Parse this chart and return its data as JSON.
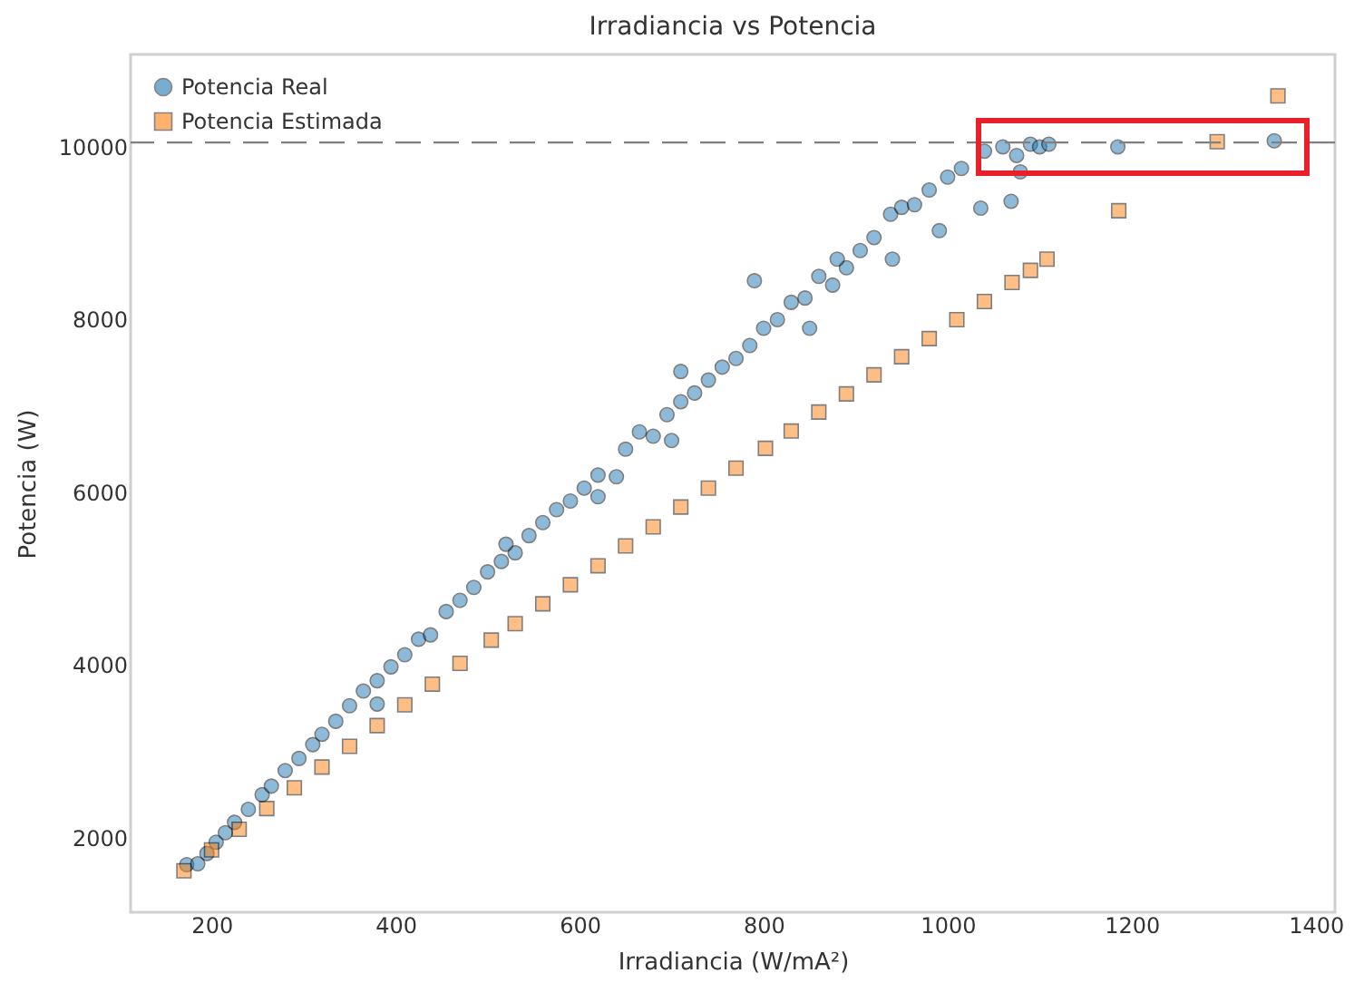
{
  "chart_data": {
    "type": "scatter",
    "title": "Irradiancia vs Potencia",
    "xlabel": "Irradiancia (W/mA²)",
    "ylabel": "Potencia (W)",
    "xlim": [
      112,
      1421
    ],
    "ylim": [
      1139,
      11070
    ],
    "xticks": [
      200,
      400,
      600,
      800,
      1000,
      1200,
      1400
    ],
    "yticks": [
      2000,
      4000,
      6000,
      8000,
      10000
    ],
    "grid": false,
    "legend": "top left",
    "ref_lines": [
      {
        "axis": "y",
        "value": 10050,
        "color": "#808080",
        "line_style": "dashed"
      }
    ],
    "series": [
      {
        "name": "Potencia Real",
        "color": "#1f77b4",
        "marker": "circle",
        "x": [
          173,
          185,
          195,
          205,
          215,
          225,
          240,
          255,
          265,
          280,
          295,
          310,
          320,
          335,
          350,
          365,
          380,
          395,
          410,
          425,
          438,
          455,
          470,
          485,
          500,
          515,
          530,
          545,
          560,
          575,
          590,
          605,
          620,
          640,
          650,
          665,
          680,
          695,
          710,
          725,
          740,
          755,
          770,
          785,
          800,
          815,
          830,
          845,
          860,
          875,
          890,
          905,
          920,
          938,
          950,
          964,
          980,
          991,
          1000,
          1015,
          1036,
          1069,
          1079,
          380,
          520,
          620,
          700,
          790,
          850,
          710,
          880,
          940,
          1040,
          1060,
          1075,
          1090,
          1100,
          1110,
          1185,
          1355
        ],
        "values": [
          1690,
          1700,
          1820,
          1950,
          2060,
          2180,
          2330,
          2500,
          2600,
          2780,
          2920,
          3080,
          3200,
          3350,
          3530,
          3700,
          3820,
          3980,
          4120,
          4300,
          4350,
          4620,
          4750,
          4900,
          5080,
          5200,
          5300,
          5500,
          5650,
          5800,
          5900,
          6050,
          6200,
          6180,
          6500,
          6700,
          6650,
          6900,
          7050,
          7150,
          7300,
          7450,
          7550,
          7700,
          7900,
          8000,
          8200,
          8250,
          8500,
          8400,
          8600,
          8800,
          8950,
          9220,
          9300,
          9330,
          9500,
          9030,
          9650,
          9750,
          9290,
          9370,
          9710,
          3550,
          5400,
          5950,
          6600,
          8450,
          7900,
          7400,
          8700,
          8700,
          9950,
          10000,
          9900,
          10030,
          10000,
          10030,
          10000,
          10070
        ]
      },
      {
        "name": "Potencia Estimada",
        "color": "#ff7f0e",
        "marker": "square",
        "x": [
          170,
          200,
          230,
          260,
          290,
          320,
          350,
          380,
          410,
          440,
          470,
          504,
          530,
          560,
          590,
          620,
          650,
          680,
          710,
          740,
          770,
          802,
          830,
          860,
          890,
          920,
          950,
          980,
          1010,
          1040,
          1070,
          1090,
          1108,
          1186,
          1293,
          1359
        ],
        "values": [
          1620,
          1860,
          2100,
          2340,
          2580,
          2820,
          3060,
          3300,
          3540,
          3780,
          4020,
          4290,
          4480,
          4710,
          4930,
          5150,
          5380,
          5600,
          5830,
          6050,
          6280,
          6510,
          6710,
          6930,
          7140,
          7360,
          7570,
          7780,
          8000,
          8210,
          8430,
          8570,
          8700,
          9260,
          10060,
          10590
        ]
      }
    ]
  }
}
